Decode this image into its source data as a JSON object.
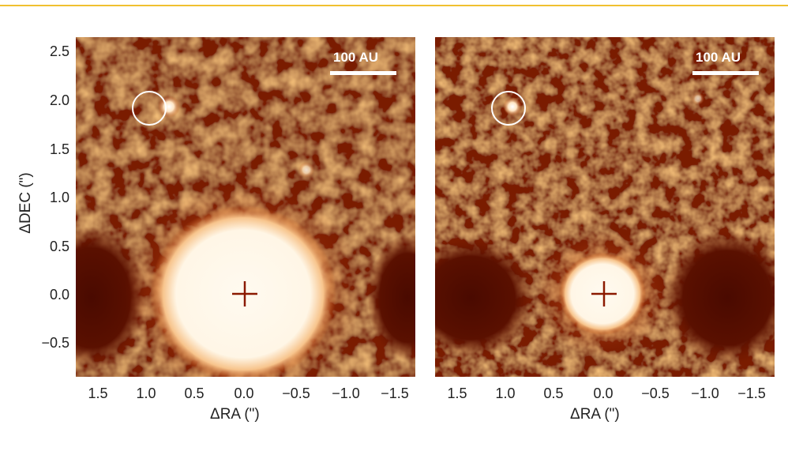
{
  "figure": {
    "y_axis_title": "ΔDEC (\")",
    "x_axis_title": "ΔRA (\")",
    "y_ticks": [
      "2.5",
      "2.0",
      "1.5",
      "1.0",
      "0.5",
      "0.0",
      "−0.5"
    ],
    "x_ticks": [
      "1.5",
      "1.0",
      "0.5",
      "0.0",
      "−0.5",
      "−1.0",
      "−1.5"
    ],
    "scale_bar_label": "100 AU",
    "colors": {
      "background": "#7a1c04",
      "bright": "#fff8ec",
      "marker": "#8b1a00",
      "accent": "#f0c030"
    },
    "panels": [
      {
        "name": "left",
        "star_marker": "plus-icon",
        "circled_source": "circle-icon"
      },
      {
        "name": "right",
        "star_marker": "plus-icon",
        "circled_source": "circle-icon"
      }
    ]
  }
}
